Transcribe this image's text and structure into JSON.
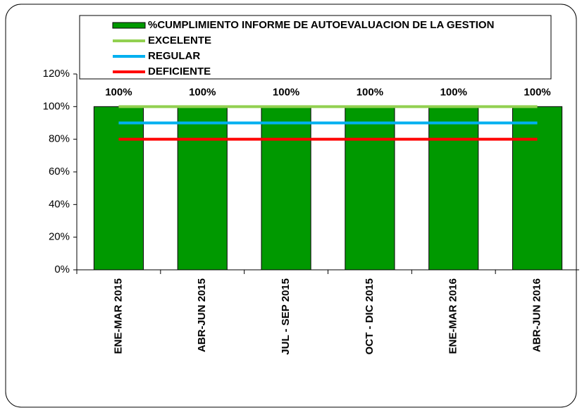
{
  "chart_data": {
    "type": "bar",
    "categories": [
      "ENE-MAR 2015",
      "ABR-JUN 2015",
      "JUL - SEP 2015",
      "OCT - DIC 2015",
      "ENE-MAR 2016",
      "ABR-JUN 2016"
    ],
    "series": [
      {
        "name": "%CUMPLIMIENTO INFORME DE AUTOEVALUACION DE LA GESTION",
        "type": "bar",
        "color": "#009900",
        "values": [
          100,
          100,
          100,
          100,
          100,
          100
        ],
        "value_labels": [
          "100%",
          "100%",
          "100%",
          "100%",
          "100%",
          "100%"
        ]
      },
      {
        "name": "EXCELENTE",
        "type": "line",
        "color": "#92d050",
        "values": [
          100,
          100,
          100,
          100,
          100,
          100
        ]
      },
      {
        "name": "REGULAR",
        "type": "line",
        "color": "#00b0f0",
        "values": [
          90,
          90,
          90,
          90,
          90,
          90
        ]
      },
      {
        "name": "DEFICIENTE",
        "type": "line",
        "color": "#ff0000",
        "values": [
          80,
          80,
          80,
          80,
          80,
          80
        ]
      }
    ],
    "ylim": [
      0,
      120
    ],
    "yticks": [
      {
        "value": 0,
        "label": "0%"
      },
      {
        "value": 20,
        "label": "20%"
      },
      {
        "value": 40,
        "label": "40%"
      },
      {
        "value": 60,
        "label": "60%"
      },
      {
        "value": 80,
        "label": "80%"
      },
      {
        "value": 100,
        "label": "100%"
      },
      {
        "value": 120,
        "label": "120%"
      }
    ],
    "grid": false
  }
}
